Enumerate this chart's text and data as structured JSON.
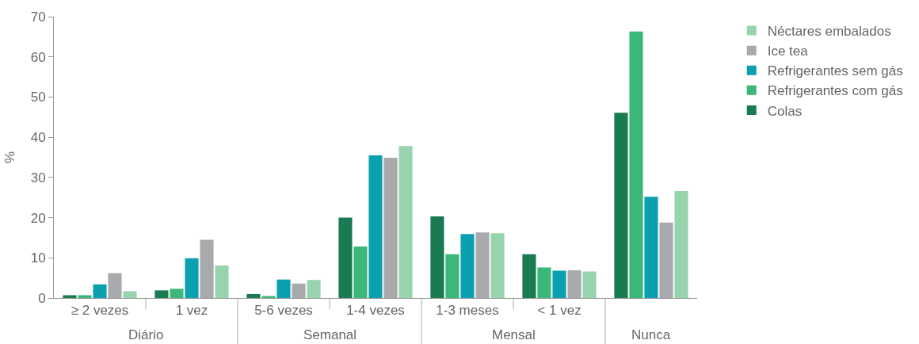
{
  "chart_data": {
    "type": "bar",
    "ylabel": "%",
    "categories": [
      "≥ 2 vezes",
      "1 vez",
      "5-6 vezes",
      "1-4 vezes",
      "1-3 meses",
      "< 1 vez",
      null
    ],
    "series": [
      {
        "name": "Colas",
        "color": "#1a7a52",
        "values": [
          0.7,
          1.9,
          1.0,
          20.0,
          20.3,
          10.9,
          46.1
        ]
      },
      {
        "name": "Refrigerantes com gás",
        "color": "#3bb877",
        "values": [
          0.7,
          2.3,
          0.5,
          12.8,
          10.9,
          7.6,
          66.3
        ]
      },
      {
        "name": "Refrigerantes sem gás",
        "color": "#0aa0b0",
        "values": [
          3.4,
          9.9,
          4.6,
          35.5,
          15.9,
          6.8,
          25.2
        ]
      },
      {
        "name": "Ice tea",
        "color": "#a7a9ac",
        "values": [
          6.2,
          14.5,
          3.6,
          34.9,
          16.3,
          6.9,
          18.8
        ]
      },
      {
        "name": "Néctares embalados",
        "color": "#97d3ac",
        "values": [
          1.7,
          8.1,
          4.5,
          37.8,
          16.1,
          6.6,
          26.6
        ]
      }
    ],
    "ylim": [
      0,
      70
    ],
    "yticks": [
      0,
      10,
      20,
      30,
      40,
      50,
      60,
      70
    ],
    "legend": "top right",
    "annotations": [
      "Diário",
      "Semanal",
      "Mensal",
      "Nunca"
    ]
  }
}
